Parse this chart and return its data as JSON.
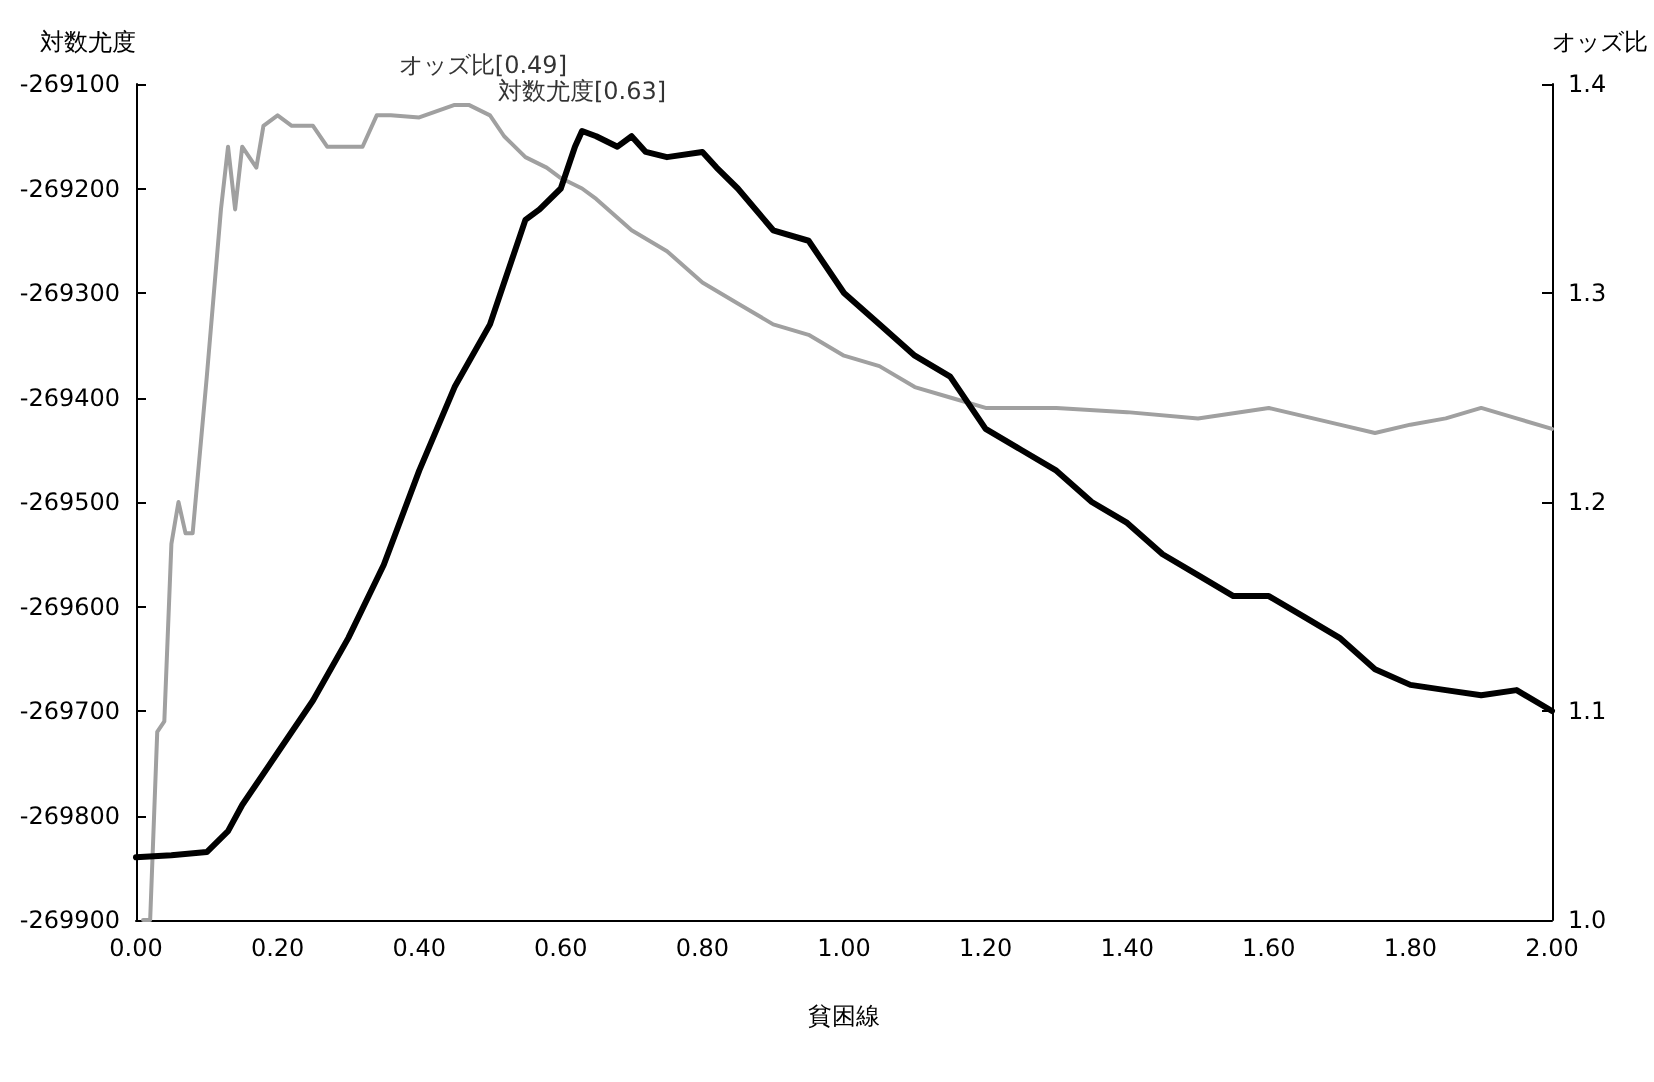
{
  "chart_data": {
    "type": "line",
    "xlabel": "貧困線",
    "ylabel": "対数尤度",
    "y2label": "オッズ比",
    "xlim": [
      0,
      2
    ],
    "xticks": [
      {
        "value": 0,
        "label": "0.00"
      },
      {
        "value": 0.2,
        "label": "0.20"
      },
      {
        "value": 0.4,
        "label": "0.40"
      },
      {
        "value": 0.6,
        "label": "0.60"
      },
      {
        "value": 0.8,
        "label": "0.80"
      },
      {
        "value": 1,
        "label": "1.00"
      },
      {
        "value": 1.2,
        "label": "1.20"
      },
      {
        "value": 1.4,
        "label": "1.40"
      },
      {
        "value": 1.6,
        "label": "1.60"
      },
      {
        "value": 1.8,
        "label": "1.80"
      },
      {
        "value": 2,
        "label": "2.00"
      }
    ],
    "ylim": [
      -269900,
      -269100
    ],
    "yticks": [
      -269900,
      -269800,
      -269700,
      -269600,
      -269500,
      -269400,
      -269300,
      -269200,
      -269100
    ],
    "y2lim": [
      1,
      1.4
    ],
    "y2ticks": [
      {
        "value": 1,
        "label": "1.0"
      },
      1.1,
      1.2,
      1.3,
      1.4
    ],
    "grid": false,
    "marker": "none",
    "line_style": "solid",
    "annotations": [
      {
        "text": "オッズ比[0.49]",
        "x": 0.49,
        "y": -269120
      },
      {
        "text": "対数尤度[0.63]",
        "x": 0.63,
        "y": -269145
      }
    ],
    "series": [
      {
        "color": "#000000",
        "x": [
          0,
          0.05,
          0.1,
          0.13,
          0.15,
          0.2,
          0.25,
          0.3,
          0.35,
          0.4,
          0.45,
          0.5,
          0.52,
          0.55,
          0.57,
          0.6,
          0.62,
          0.63,
          0.65,
          0.68,
          0.7,
          0.72,
          0.75,
          0.8,
          0.82,
          0.85,
          0.9,
          0.95,
          1,
          1.05,
          1.1,
          1.15,
          1.2,
          1.25,
          1.3,
          1.35,
          1.4,
          1.45,
          1.5,
          1.55,
          1.6,
          1.65,
          1.7,
          1.75,
          1.8,
          1.85,
          1.9,
          1.95,
          2
        ],
        "values": [
          -269840,
          -269838,
          -269835,
          -269815,
          -269790,
          -269740,
          -269690,
          -269630,
          -269560,
          -269470,
          -269390,
          -269330,
          -269290,
          -269230,
          -269220,
          -269200,
          -269160,
          -269145,
          -269150,
          -269160,
          -269150,
          -269165,
          -269170,
          -269165,
          -269180,
          -269200,
          -269240,
          -269250,
          -269300,
          -269330,
          -269360,
          -269380,
          -269430,
          -269450,
          -269470,
          -269500,
          -269520,
          -269550,
          -269570,
          -269590,
          -269590,
          -269610,
          -269630,
          -269660,
          -269675,
          -269680,
          -269685,
          -269680,
          -269700
        ]
      },
      {
        "color": "#a0a0a0",
        "axis": "y2",
        "x": [
          0.01,
          0.02,
          0.03,
          0.04,
          0.05,
          0.06,
          0.07,
          0.08,
          0.1,
          0.12,
          0.13,
          0.14,
          0.15,
          0.17,
          0.18,
          0.2,
          0.22,
          0.25,
          0.27,
          0.3,
          0.32,
          0.34,
          0.36,
          0.4,
          0.45,
          0.47,
          0.5,
          0.52,
          0.55,
          0.58,
          0.6,
          0.63,
          0.65,
          0.7,
          0.75,
          0.8,
          0.85,
          0.9,
          0.95,
          1,
          1.05,
          1.1,
          1.15,
          1.2,
          1.3,
          1.4,
          1.5,
          1.6,
          1.7,
          1.75,
          1.8,
          1.85,
          1.9,
          1.95,
          2
        ],
        "values": [
          1,
          1,
          1.09,
          1.095,
          1.18,
          1.2,
          1.185,
          1.185,
          1.26,
          1.34,
          1.37,
          1.34,
          1.37,
          1.36,
          1.38,
          1.385,
          1.38,
          1.38,
          1.37,
          1.37,
          1.37,
          1.385,
          1.385,
          1.384,
          1.39,
          1.39,
          1.385,
          1.375,
          1.365,
          1.36,
          1.355,
          1.35,
          1.345,
          1.33,
          1.32,
          1.305,
          1.295,
          1.285,
          1.28,
          1.27,
          1.265,
          1.255,
          1.25,
          1.245,
          1.245,
          1.243,
          1.24,
          1.245,
          1.237,
          1.233,
          1.237,
          1.24,
          1.245,
          1.24,
          1.235
        ]
      }
    ]
  }
}
